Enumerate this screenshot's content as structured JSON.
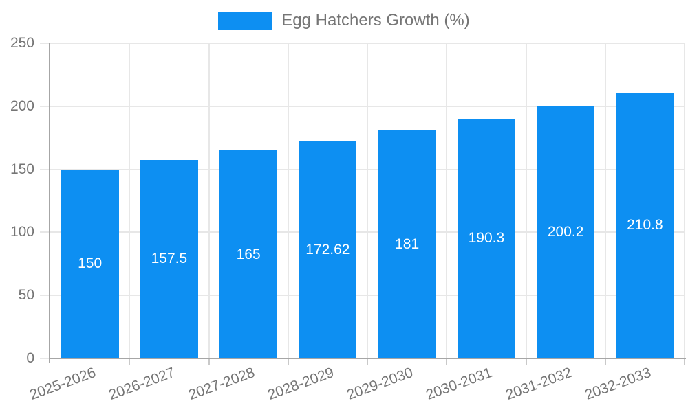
{
  "legend": {
    "label": "Egg Hatchers Growth (%)"
  },
  "colors": {
    "bar": "#0d8ff2",
    "bar_label_text": "#ffffff",
    "axis_text": "#757575",
    "legend_text": "#757575",
    "grid_line": "#e7e7e7",
    "axis_line": "#a6a6a6",
    "tick_mark": "#c9c9c9"
  },
  "chart_data": {
    "type": "bar",
    "title": "",
    "xlabel": "",
    "ylabel": "",
    "categories": [
      "2025-2026",
      "2026-2027",
      "2027-2028",
      "2028-2029",
      "2029-2030",
      "2030-2031",
      "2031-2032",
      "2032-2033"
    ],
    "series": [
      {
        "name": "Egg Hatchers Growth (%)",
        "values": [
          150,
          157.5,
          165,
          172.62,
          181,
          190.3,
          200.2,
          210.8
        ]
      }
    ],
    "bar_labels": [
      "150",
      "157.5",
      "165",
      "172.62",
      "181",
      "190.3",
      "200.2",
      "210.8"
    ],
    "ylim": [
      0,
      250
    ],
    "yticks": [
      0,
      50,
      100,
      150,
      200,
      250
    ],
    "grid": true,
    "grid_vertical": true,
    "legend_position": "top-center",
    "xtick_rotation_deg": -20,
    "bar_label_position": "inside-center"
  }
}
